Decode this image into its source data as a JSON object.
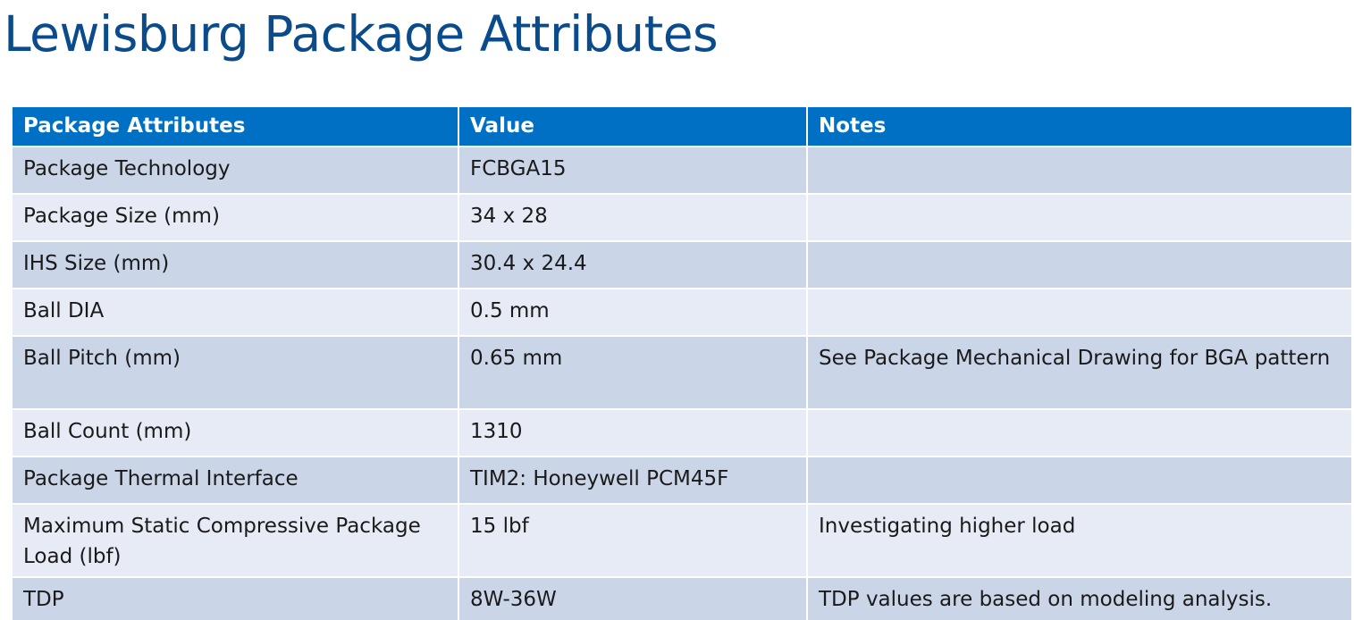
{
  "page": {
    "title": "Lewisburg Package Attributes"
  },
  "table": {
    "headers": [
      "Package Attributes",
      "Value",
      "Notes"
    ],
    "rows": [
      {
        "attribute": "Package Technology",
        "value": "FCBGA15",
        "notes": ""
      },
      {
        "attribute": "Package Size (mm)",
        "value": "34 x 28",
        "notes": ""
      },
      {
        "attribute": "IHS Size (mm)",
        "value": "30.4 x 24.4",
        "notes": ""
      },
      {
        "attribute": "Ball DIA",
        "value": "0.5 mm",
        "notes": ""
      },
      {
        "attribute": "Ball Pitch (mm)",
        "value": "0.65 mm",
        "notes": "See Package Mechanical Drawing for BGA pattern"
      },
      {
        "attribute": "Ball Count (mm)",
        "value": "1310",
        "notes": ""
      },
      {
        "attribute": "Package Thermal Interface",
        "value": "TIM2: Honeywell PCM45F",
        "notes": ""
      },
      {
        "attribute": "Maximum Static Compressive Package Load (lbf)",
        "value": "15 lbf",
        "notes": "Investigating higher load"
      },
      {
        "attribute": "TDP",
        "value": "8W-36W",
        "notes": "TDP values are based on modeling analysis."
      }
    ]
  },
  "colors": {
    "title": "#0a4b8c",
    "header_bg": "#0070c5",
    "row_dark": "#cbd5e8",
    "row_light": "#e7ebf5"
  }
}
